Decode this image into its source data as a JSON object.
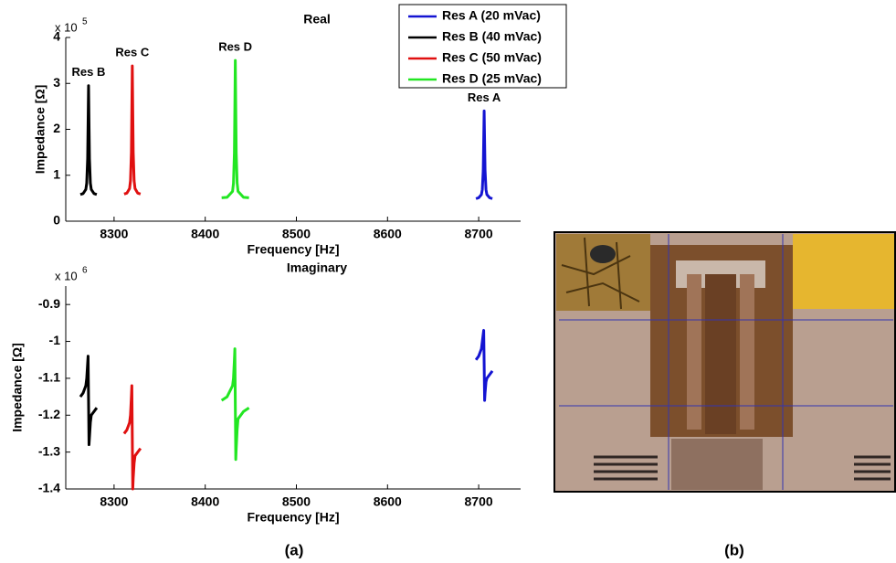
{
  "captions": [
    "(a)",
    "(b)"
  ],
  "chart_data": [
    {
      "type": "line",
      "title": "Real",
      "xlabel": "Frequency [Hz]",
      "ylabel": "Impedance [Ω]",
      "y_multiplier": "x 10",
      "y_exponent": "5",
      "xlim": [
        8247,
        8746
      ],
      "xticks": [
        8300,
        8400,
        8500,
        8600,
        8700
      ],
      "ylim": [
        0,
        4
      ],
      "yticks": [
        0,
        1,
        2,
        3,
        4
      ],
      "legend": true,
      "series": [
        {
          "name": "Res A (20 mVac)",
          "peak_label": "Res A",
          "color": "#1414d2",
          "x": [
            8697,
            8700,
            8703,
            8704,
            8705,
            8705.5,
            8706,
            8706.5,
            8707,
            8708,
            8709,
            8712,
            8715
          ],
          "values": [
            0.49,
            0.51,
            0.58,
            0.69,
            1.11,
            1.75,
            2.4,
            1.75,
            1.11,
            0.69,
            0.58,
            0.51,
            0.49
          ]
        },
        {
          "name": "Res B (40 mVac)",
          "peak_label": "Res B",
          "color": "#000000",
          "x": [
            8263,
            8266,
            8269,
            8270,
            8271,
            8271.5,
            8272,
            8272.5,
            8273,
            8274,
            8275,
            8278,
            8281
          ],
          "values": [
            0.58,
            0.6,
            0.69,
            0.83,
            1.36,
            2.14,
            2.95,
            2.14,
            1.36,
            0.83,
            0.69,
            0.6,
            0.58
          ]
        },
        {
          "name": "Res C (50 mVac)",
          "peak_label": "Res C",
          "color": "#e01010",
          "x": [
            8311,
            8314,
            8317,
            8318,
            8319,
            8319.5,
            8320,
            8320.5,
            8321,
            8322,
            8323,
            8326,
            8329
          ],
          "values": [
            0.59,
            0.61,
            0.71,
            0.88,
            1.5,
            2.42,
            3.38,
            2.42,
            1.5,
            0.88,
            0.71,
            0.61,
            0.59
          ]
        },
        {
          "name": "Res D (25 mVac)",
          "peak_label": "Res D",
          "color": "#22e622",
          "x": [
            8418,
            8424,
            8430,
            8431,
            8432,
            8432.5,
            8433,
            8433.5,
            8434,
            8435,
            8436,
            8442,
            8448
          ],
          "values": [
            0.51,
            0.52,
            0.65,
            0.83,
            1.49,
            2.48,
            3.5,
            2.48,
            1.49,
            0.83,
            0.65,
            0.52,
            0.51
          ]
        }
      ]
    },
    {
      "type": "line",
      "title": "Imaginary",
      "xlabel": "Frequency [Hz]",
      "ylabel": "Impedance [Ω]",
      "y_multiplier": "x 10",
      "y_exponent": "6",
      "xlim": [
        8247,
        8746
      ],
      "xticks": [
        8300,
        8400,
        8500,
        8600,
        8700
      ],
      "ylim": [
        -1.4,
        -0.85
      ],
      "yticks": [
        -1.4,
        -1.3,
        -1.2,
        -1.1,
        -1,
        -0.9
      ],
      "legend": false,
      "series": [
        {
          "color": "#1414d2",
          "x": [
            8697,
            8700,
            8703,
            8704,
            8705,
            8705.5,
            8706,
            8706.5,
            8707,
            8708,
            8709,
            8712,
            8715
          ],
          "values": [
            -1.05,
            -1.04,
            -1.02,
            -1.0,
            -0.98,
            -0.97,
            -1.06,
            -1.16,
            -1.14,
            -1.11,
            -1.1,
            -1.09,
            -1.08
          ]
        },
        {
          "color": "#000000",
          "x": [
            8263,
            8266,
            8269,
            8270,
            8271,
            8271.5,
            8272,
            8272.5,
            8273,
            8274,
            8275,
            8278,
            8281
          ],
          "values": [
            -1.15,
            -1.14,
            -1.12,
            -1.1,
            -1.06,
            -1.04,
            -1.16,
            -1.28,
            -1.26,
            -1.22,
            -1.2,
            -1.19,
            -1.18
          ]
        },
        {
          "color": "#e01010",
          "x": [
            8311,
            8314,
            8317,
            8318,
            8319,
            8319.5,
            8320,
            8320.5,
            8321,
            8322,
            8323,
            8326,
            8329
          ],
          "values": [
            -1.25,
            -1.24,
            -1.22,
            -1.2,
            -1.15,
            -1.12,
            -1.26,
            -1.4,
            -1.37,
            -1.33,
            -1.31,
            -1.3,
            -1.29
          ]
        },
        {
          "color": "#22e622",
          "x": [
            8418,
            8424,
            8430,
            8431,
            8432,
            8432.5,
            8433,
            8433.5,
            8434,
            8435,
            8436,
            8442,
            8448
          ],
          "values": [
            -1.16,
            -1.15,
            -1.12,
            -1.1,
            -1.05,
            -1.02,
            -1.17,
            -1.32,
            -1.29,
            -1.24,
            -1.21,
            -1.19,
            -1.18
          ]
        }
      ]
    }
  ]
}
